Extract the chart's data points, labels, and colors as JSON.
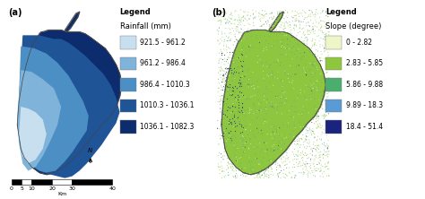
{
  "panel_a_label": "(a)",
  "panel_b_label": "(b)",
  "legend_a_title1": "Legend",
  "legend_a_title2": "Rainfall (mm)",
  "legend_a_entries": [
    {
      "label": "921.5 - 961.2",
      "color": "#c8dff0"
    },
    {
      "label": "961.2 - 986.4",
      "color": "#7fb3d9"
    },
    {
      "label": "986.4 - 1010.3",
      "color": "#4b8fc4"
    },
    {
      "label": "1010.3 - 1036.1",
      "color": "#1f5496"
    },
    {
      "label": "1036.1 - 1082.3",
      "color": "#0d2c6e"
    }
  ],
  "legend_b_title1": "Legend",
  "legend_b_title2": "Slope (degree)",
  "legend_b_entries": [
    {
      "label": "0 - 2.82",
      "color": "#eef5c8"
    },
    {
      "label": "2.83 - 5.85",
      "color": "#8ec63f"
    },
    {
      "label": "5.86 - 9.88",
      "color": "#4cae6e"
    },
    {
      "label": "9.89 - 18.3",
      "color": "#5b9bd5"
    },
    {
      "label": "18.4 - 51.4",
      "color": "#1a237e"
    }
  ],
  "bg_color": "#cfe0ef",
  "font_size_panel": 7,
  "font_size_legend_title": 6,
  "font_size_legend_entry": 5.5,
  "font_size_scalebar": 4.5,
  "map_edge_color": "#444444",
  "map_edge_lw": 0.5
}
